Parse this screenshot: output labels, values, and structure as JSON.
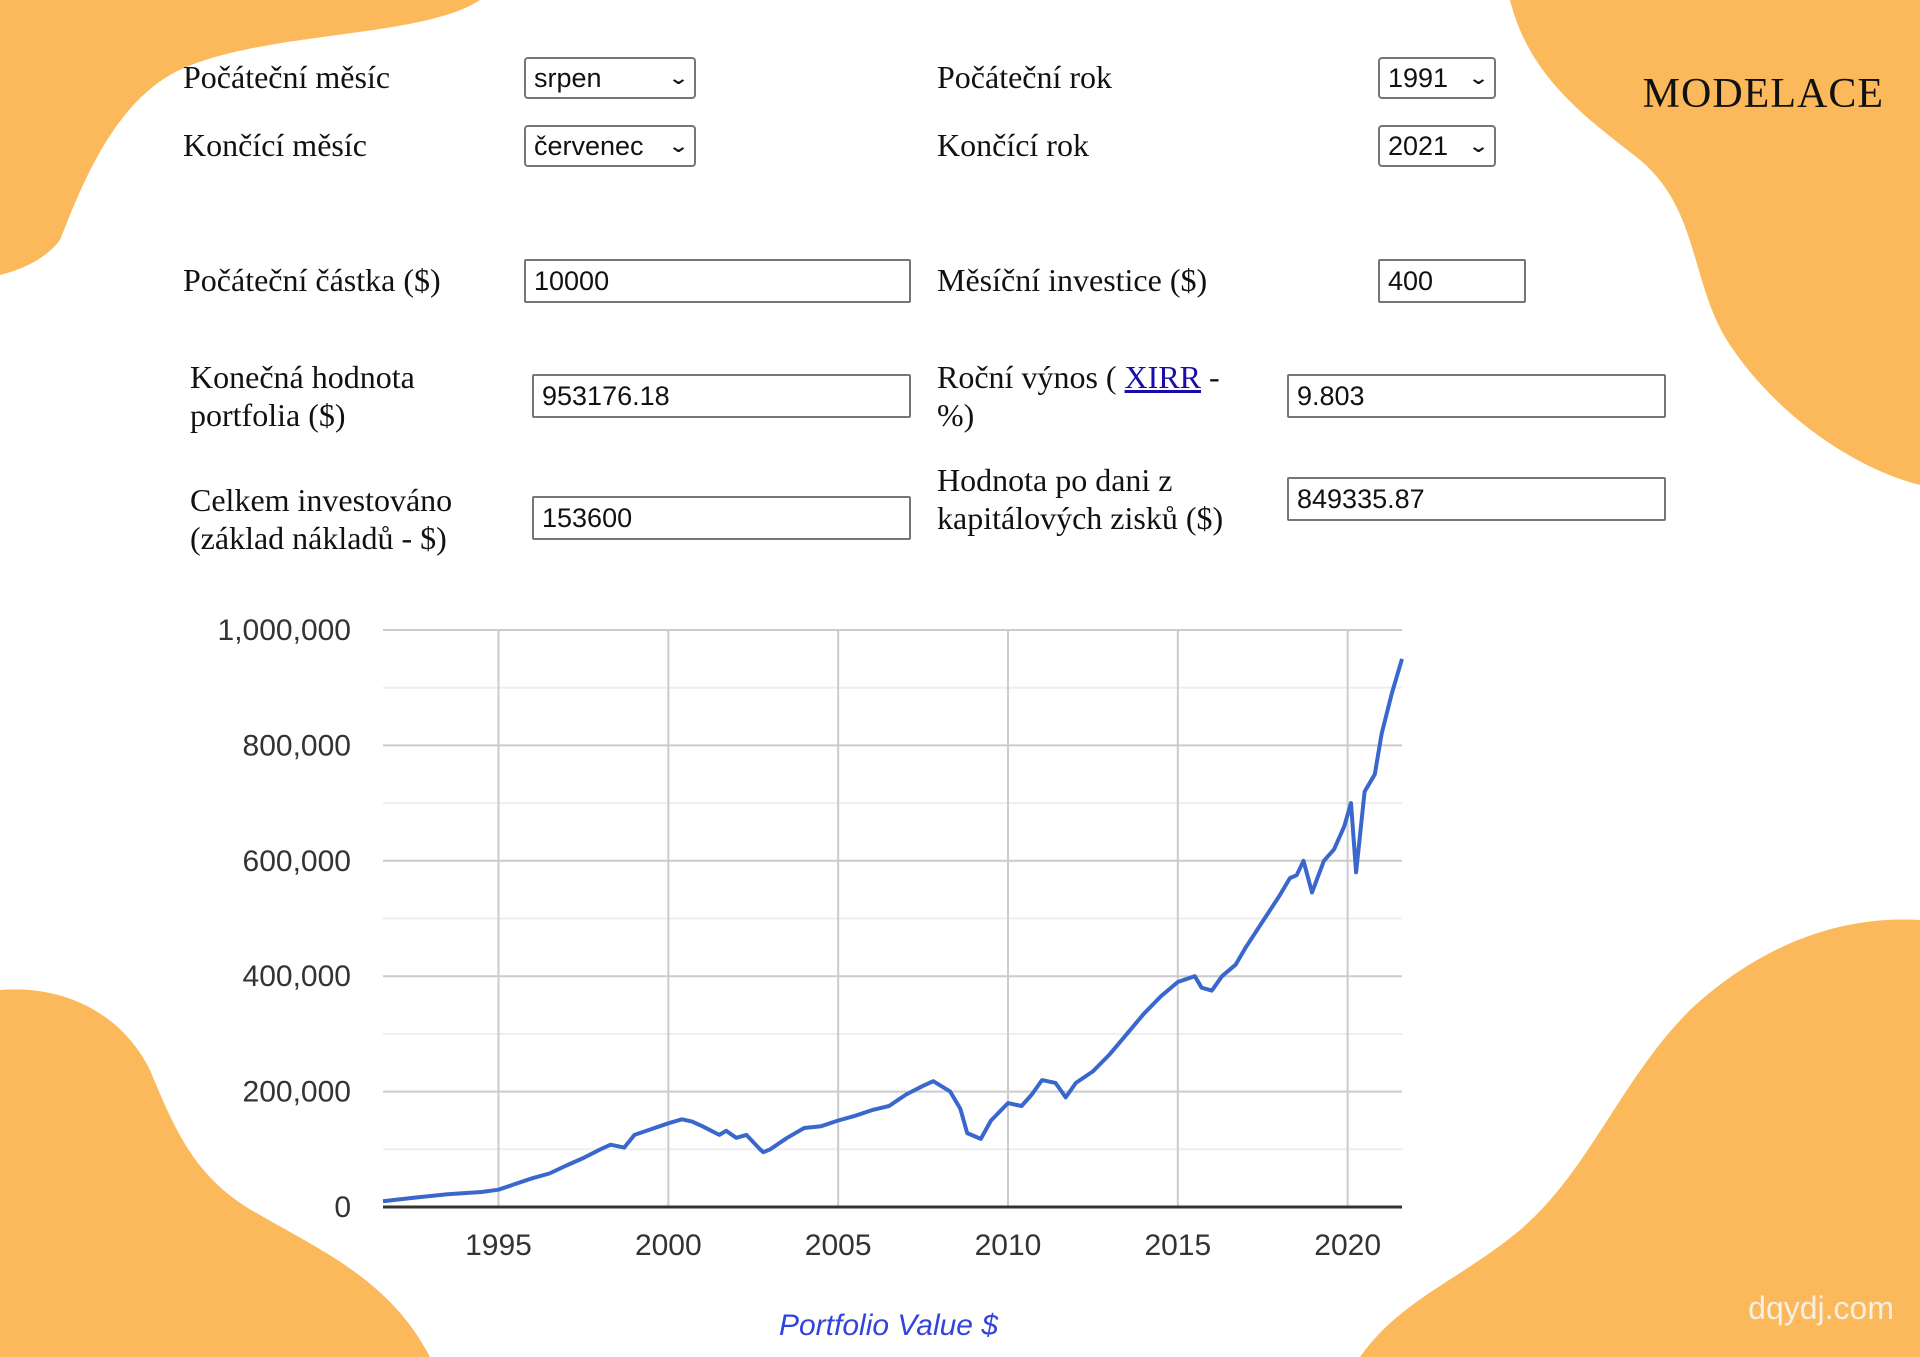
{
  "title": "MODELACE",
  "watermark": "dqydj.com",
  "colors": {
    "blob": "#fbb95b",
    "line": "#3a67cb",
    "grid": "#cccccc",
    "link": "#1a0dab",
    "caption": "#3344dd"
  },
  "form": {
    "start_month": {
      "label": "Počáteční měsíc",
      "value": "srpen"
    },
    "start_year": {
      "label": "Počáteční rok",
      "value": "1991"
    },
    "end_month": {
      "label": "Končící měsíc",
      "value": "červenec"
    },
    "end_year": {
      "label": "Končící rok",
      "value": "2021"
    },
    "initial_amount": {
      "label": "Počáteční částka ($)",
      "value": "10000"
    },
    "monthly_investment": {
      "label": "Měsíční investice ($)",
      "value": "400"
    },
    "final_value": {
      "label": "Konečná hodnota portfolia ($)",
      "value": "953176.18"
    },
    "annual_return": {
      "label_before": "Roční výnos (",
      "link": "XIRR",
      "label_after": " - %)",
      "value": "9.803"
    },
    "total_invested": {
      "label": "Celkem investováno (základ nákladů - $)",
      "value": "153600"
    },
    "after_tax_value": {
      "label": "Hodnota po dani z kapitálových zisků ($)",
      "value": "849335.87"
    }
  },
  "chart_data": {
    "type": "line",
    "title": "Portfolio Value $",
    "xlabel": "",
    "ylabel": "",
    "xlim": [
      1991.6,
      2021.6
    ],
    "ylim": [
      0,
      1000000
    ],
    "x_ticks": [
      1995,
      2000,
      2005,
      2010,
      2015,
      2020
    ],
    "x_tick_labels": [
      "1995",
      "2000",
      "2005",
      "2010",
      "2015",
      "2020"
    ],
    "y_ticks": [
      0,
      200000,
      400000,
      600000,
      800000,
      1000000
    ],
    "y_tick_labels": [
      "0",
      "200,000",
      "400,000",
      "600,000",
      "800,000",
      "1,000,000"
    ],
    "grid": true,
    "series": [
      {
        "x": [
          1991.6,
          1992.5,
          1993.5,
          1994.5,
          1995.0,
          1995.5,
          1996.0,
          1996.5,
          1997.0,
          1997.5,
          1998.0,
          1998.3,
          1998.7,
          1999.0,
          1999.5,
          2000.0,
          2000.4,
          2000.7,
          2001.0,
          2001.5,
          2001.7,
          2002.0,
          2002.3,
          2002.7,
          2002.8,
          2003.0,
          2003.5,
          2004.0,
          2004.5,
          2005.0,
          2005.5,
          2006.0,
          2006.5,
          2007.0,
          2007.5,
          2007.8,
          2008.3,
          2008.6,
          2008.8,
          2009.2,
          2009.5,
          2010.0,
          2010.4,
          2010.7,
          2011.0,
          2011.4,
          2011.7,
          2012.0,
          2012.5,
          2013.0,
          2013.5,
          2014.0,
          2014.5,
          2015.0,
          2015.5,
          2015.7,
          2016.0,
          2016.3,
          2016.7,
          2017.0,
          2017.5,
          2018.0,
          2018.3,
          2018.5,
          2018.7,
          2018.95,
          2019.3,
          2019.6,
          2019.9,
          2020.1,
          2020.25,
          2020.5,
          2020.8,
          2021.0,
          2021.3,
          2021.6
        ],
        "y": [
          10000,
          16000,
          22000,
          26000,
          30000,
          40000,
          50000,
          58000,
          72000,
          85000,
          100000,
          108000,
          103000,
          125000,
          135000,
          145000,
          152000,
          148000,
          140000,
          125000,
          132000,
          120000,
          125000,
          100000,
          95000,
          100000,
          120000,
          137000,
          140000,
          150000,
          158000,
          168000,
          175000,
          195000,
          210000,
          218000,
          200000,
          170000,
          128000,
          118000,
          150000,
          180000,
          175000,
          195000,
          220000,
          215000,
          190000,
          215000,
          235000,
          265000,
          300000,
          335000,
          365000,
          390000,
          400000,
          380000,
          375000,
          400000,
          420000,
          450000,
          495000,
          540000,
          570000,
          575000,
          600000,
          545000,
          600000,
          620000,
          660000,
          700000,
          580000,
          720000,
          750000,
          820000,
          890000,
          950000
        ]
      }
    ]
  }
}
